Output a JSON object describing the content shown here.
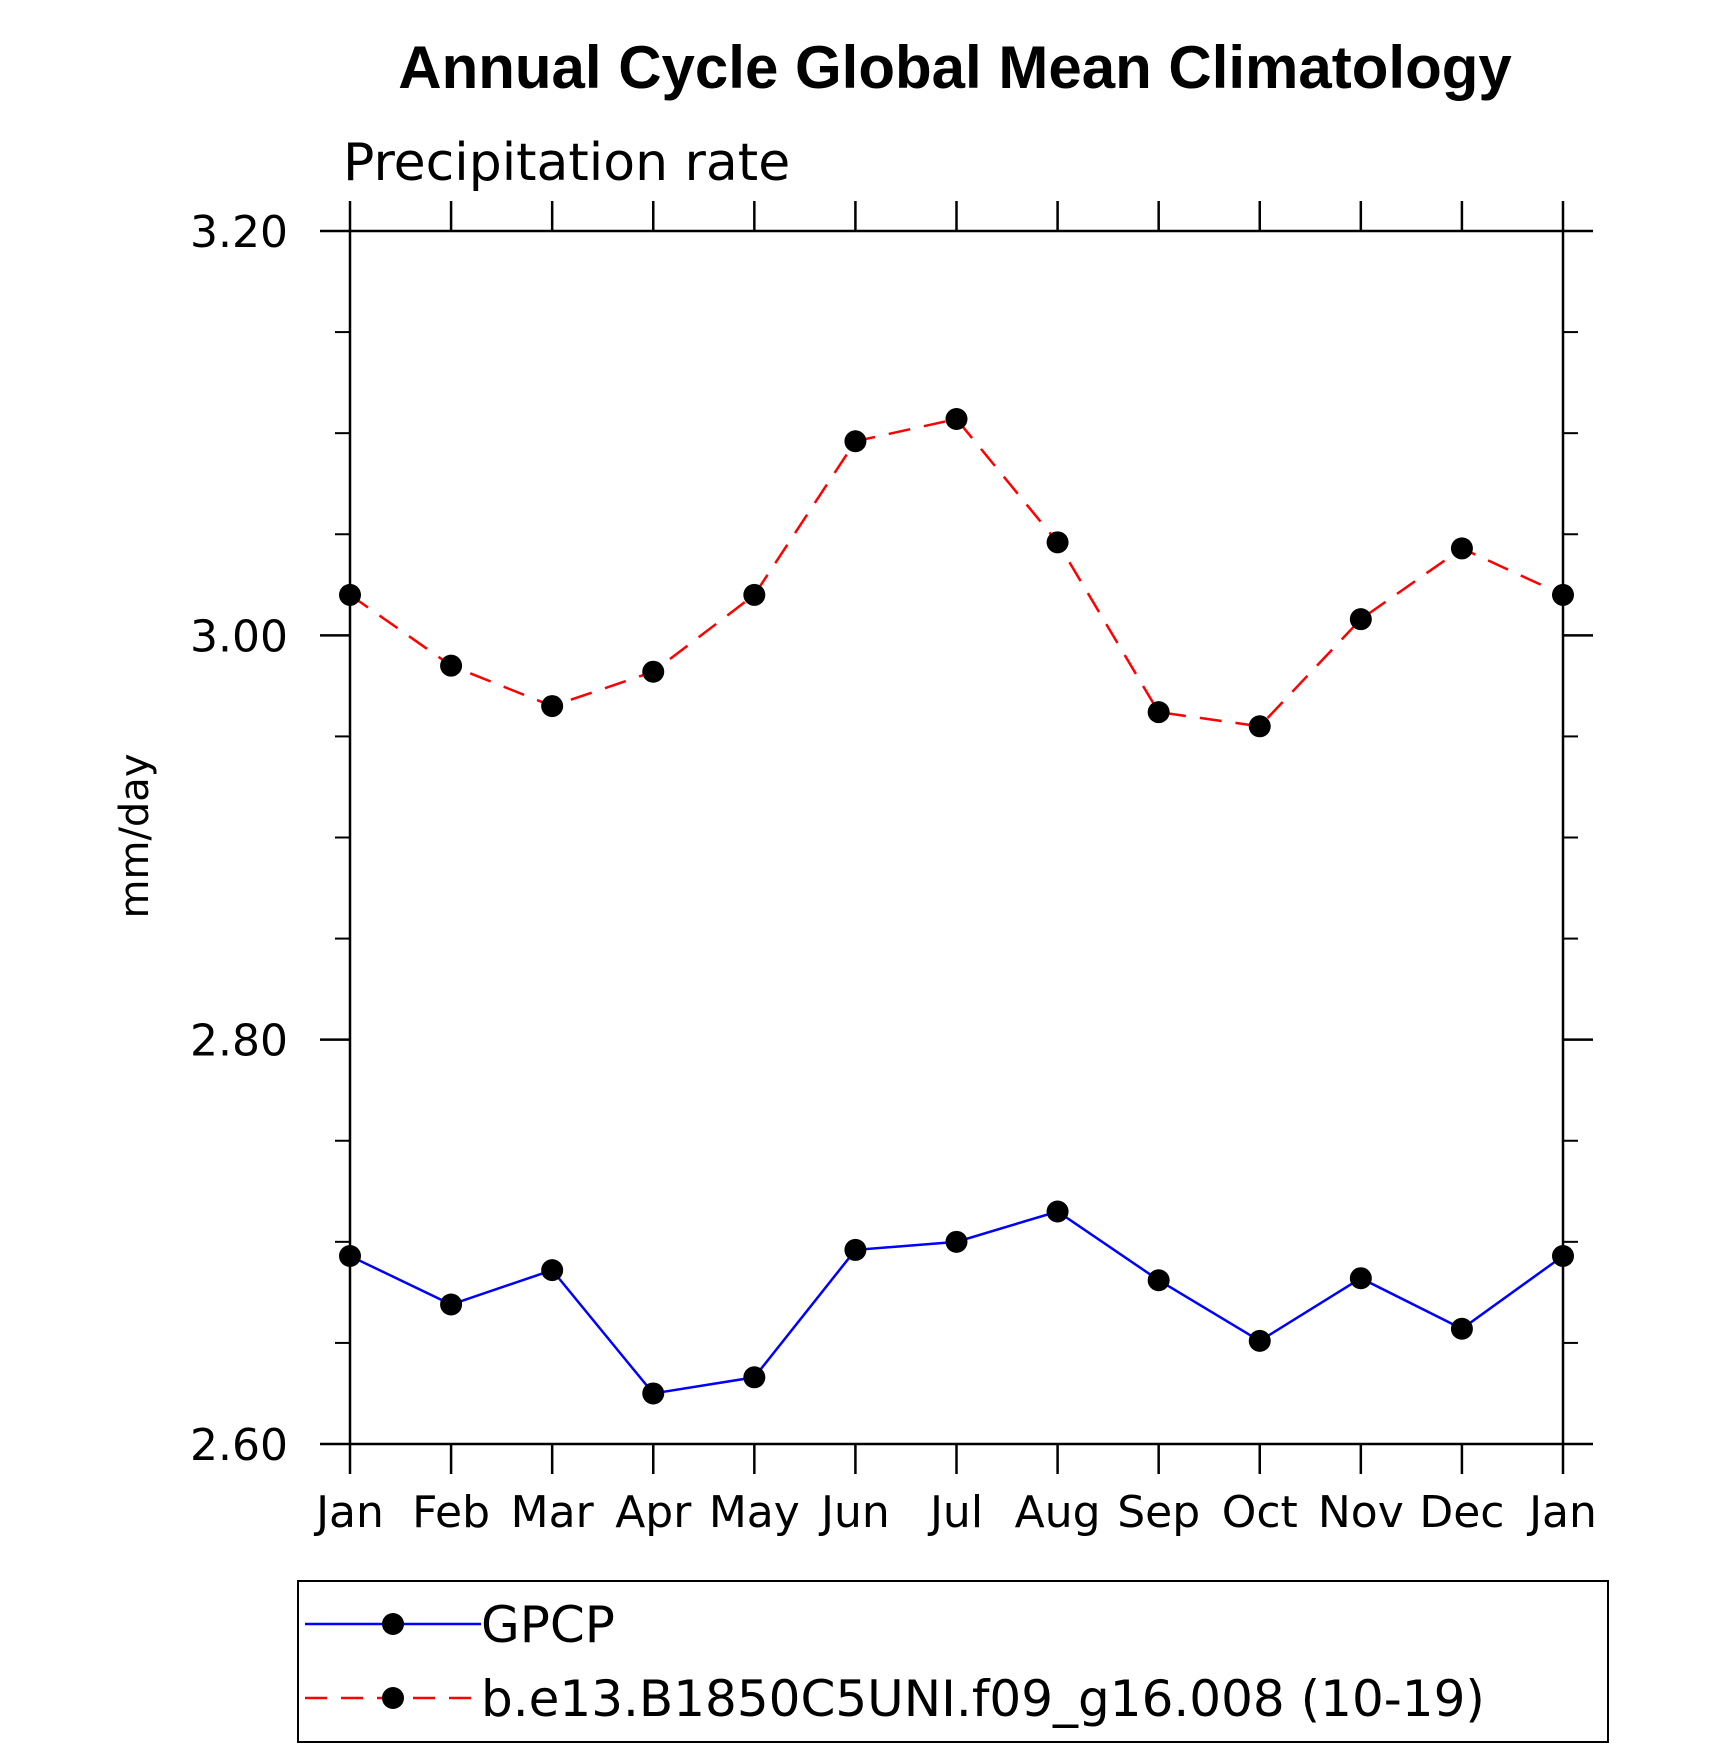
{
  "chart_data": {
    "type": "line",
    "title": "Annual Cycle Global Mean Climatology",
    "subtitle": "Precipitation rate",
    "xlabel": "",
    "ylabel": "mm/day",
    "categories": [
      "Jan",
      "Feb",
      "Mar",
      "Apr",
      "May",
      "Jun",
      "Jul",
      "Aug",
      "Sep",
      "Oct",
      "Nov",
      "Dec",
      "Jan"
    ],
    "ylim": [
      2.6,
      3.2
    ],
    "yticks": [
      "2.60",
      "2.80",
      "3.00",
      "3.20"
    ],
    "grid": false,
    "legend_position": "bottom",
    "series": [
      {
        "name": "GPCP",
        "color": "#0000ff",
        "line_style": "solid",
        "marker": "filled-circle",
        "values": [
          2.693,
          2.669,
          2.686,
          2.625,
          2.633,
          2.696,
          2.7,
          2.715,
          2.681,
          2.651,
          2.682,
          2.657,
          2.693
        ]
      },
      {
        "name": "b.e13.B1850C5UNI.f09_g16.008 (10-19)",
        "color": "#ff0000",
        "line_style": "dashed",
        "marker": "filled-circle",
        "values": [
          3.02,
          2.985,
          2.965,
          2.982,
          3.02,
          3.096,
          3.107,
          3.046,
          2.962,
          2.955,
          3.008,
          3.043,
          3.02
        ]
      }
    ]
  }
}
